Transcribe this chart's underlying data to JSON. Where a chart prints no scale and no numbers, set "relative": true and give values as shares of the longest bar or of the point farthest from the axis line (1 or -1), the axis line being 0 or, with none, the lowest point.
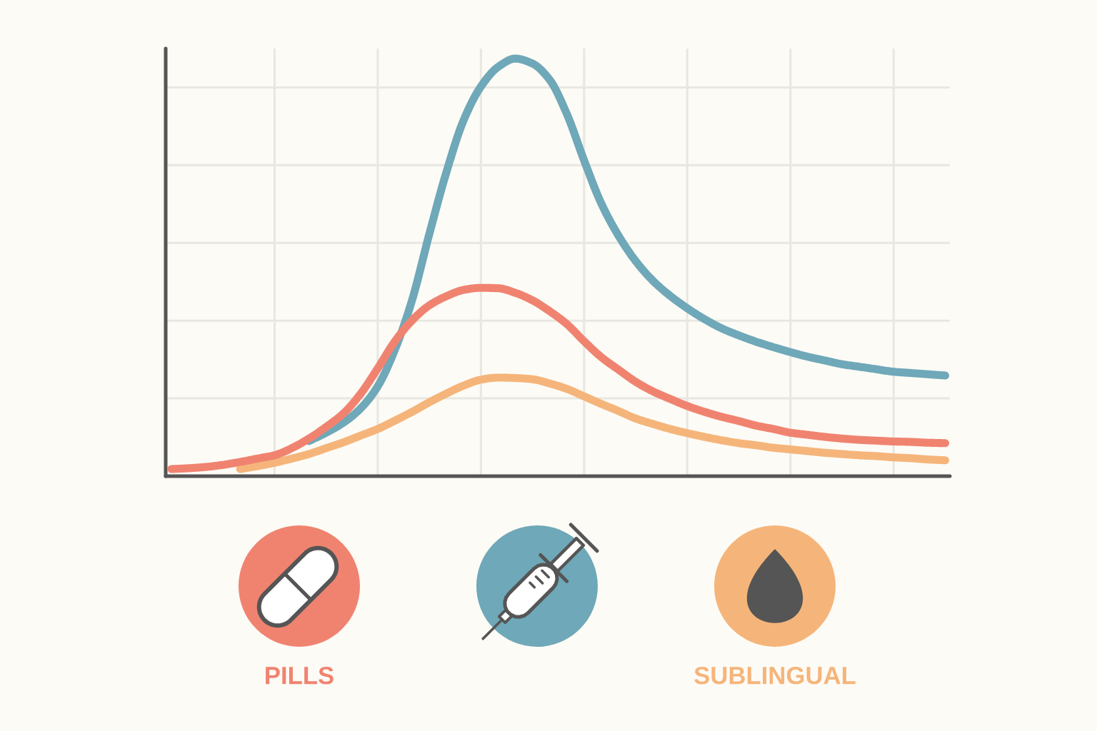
{
  "chart_data": {
    "type": "line",
    "relative": true,
    "categories": [
      null,
      null,
      null,
      null,
      null,
      null,
      null,
      null,
      null,
      null,
      null,
      null,
      null,
      null,
      null,
      null,
      null,
      null,
      null,
      null,
      null,
      null,
      null,
      null,
      null,
      null,
      null,
      null,
      null,
      null,
      null,
      null,
      null,
      null,
      null,
      null,
      null,
      null,
      null,
      null,
      null,
      null,
      null,
      null,
      null,
      null
    ],
    "series": [
      {
        "name": "PILLS",
        "color": "#f08370",
        "values": [
          0.017,
          0.019,
          0.022,
          0.027,
          0.034,
          0.042,
          0.05,
          0.067,
          0.09,
          0.118,
          0.15,
          0.197,
          0.258,
          0.323,
          0.373,
          0.409,
          0.431,
          0.446,
          0.451,
          0.45,
          0.439,
          0.421,
          0.395,
          0.364,
          0.323,
          0.285,
          0.255,
          0.226,
          0.203,
          0.185,
          0.168,
          0.154,
          0.142,
          0.132,
          0.121,
          0.113,
          0.104,
          0.099,
          0.094,
          0.09,
          0.087,
          0.085,
          0.083,
          0.082,
          0.08,
          0.079
        ]
      },
      {
        "color": "#6fa8b8",
        "values": [
          null,
          null,
          null,
          null,
          null,
          null,
          null,
          null,
          0.084,
          0.104,
          0.128,
          0.162,
          0.215,
          0.303,
          0.422,
          0.58,
          0.729,
          0.853,
          0.933,
          0.98,
          1,
          0.988,
          0.949,
          0.867,
          0.756,
          0.653,
          0.576,
          0.515,
          0.468,
          0.432,
          0.402,
          0.376,
          0.354,
          0.337,
          0.322,
          0.309,
          0.297,
          0.286,
          0.277,
          0.268,
          0.262,
          0.256,
          0.25,
          0.247,
          0.244,
          0.241
        ]
      },
      {
        "name": "SUBLINGUAL",
        "color": "#f5b57a",
        "values": [
          null,
          null,
          null,
          null,
          0.017,
          0.024,
          0.032,
          0.042,
          0.053,
          0.067,
          0.081,
          0.097,
          0.113,
          0.133,
          0.154,
          0.177,
          0.198,
          0.217,
          0.231,
          0.236,
          0.235,
          0.232,
          0.222,
          0.209,
          0.191,
          0.173,
          0.156,
          0.138,
          0.125,
          0.113,
          0.103,
          0.094,
          0.086,
          0.079,
          0.074,
          0.068,
          0.064,
          0.06,
          0.056,
          0.053,
          0.05,
          0.048,
          0.045,
          0.043,
          0.04,
          0.038
        ]
      }
    ],
    "grid": true,
    "legend": "bottom",
    "line_style": "solid"
  }
}
